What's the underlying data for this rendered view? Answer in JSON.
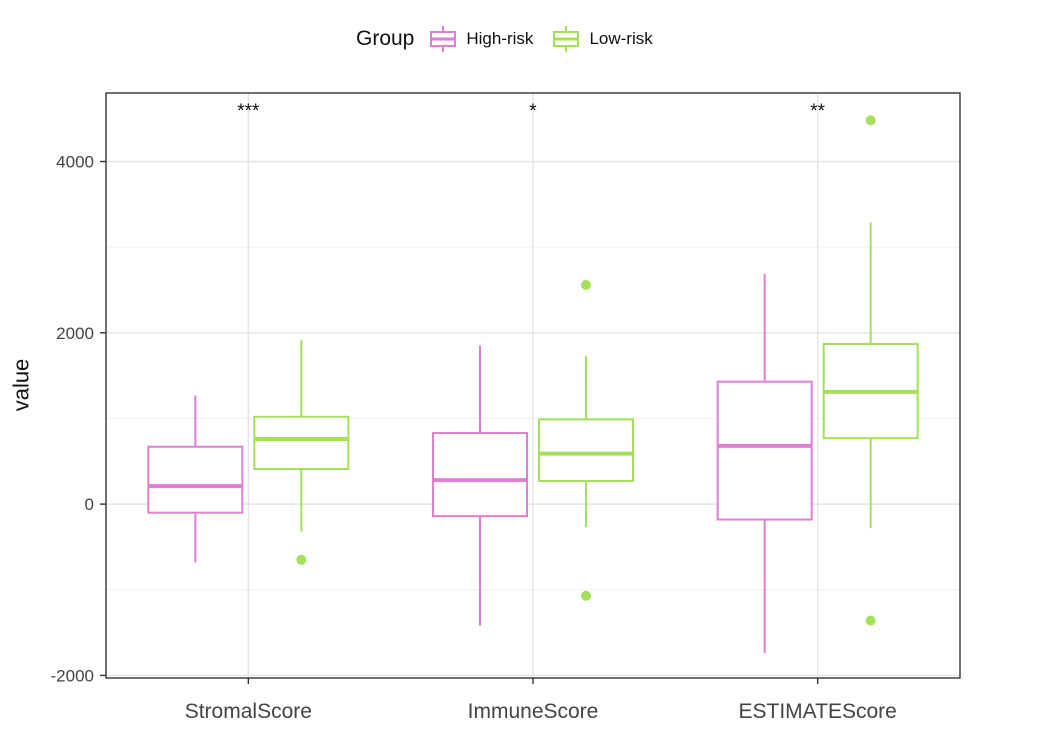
{
  "legend": {
    "title": "Group",
    "items": [
      {
        "label": "High-risk",
        "color": "#e07fd2"
      },
      {
        "label": "Low-risk",
        "color": "#a4e05a"
      }
    ]
  },
  "chart_data": {
    "type": "boxplot",
    "title": "",
    "xlabel": "",
    "ylabel": "value",
    "categories": [
      "StromalScore",
      "ImmuneScore",
      "ESTIMATEScore"
    ],
    "significance": [
      "***",
      "*",
      "**"
    ],
    "ylim": [
      -2030,
      4800
    ],
    "yticks": [
      -2000,
      0,
      2000,
      4000
    ],
    "grid": true,
    "legend_position": "top",
    "series": [
      {
        "name": "High-risk",
        "color": "#e07fd2",
        "boxes": [
          {
            "whisker_low": -680,
            "q1": -100,
            "median": 210,
            "q3": 670,
            "whisker_high": 1270,
            "outliers": []
          },
          {
            "whisker_low": -1420,
            "q1": -140,
            "median": 280,
            "q3": 830,
            "whisker_high": 1850,
            "outliers": []
          },
          {
            "whisker_low": -1740,
            "q1": -180,
            "median": 680,
            "q3": 1430,
            "whisker_high": 2690,
            "outliers": []
          }
        ]
      },
      {
        "name": "Low-risk",
        "color": "#a4e05a",
        "boxes": [
          {
            "whisker_low": -320,
            "q1": 410,
            "median": 760,
            "q3": 1020,
            "whisker_high": 1920,
            "outliers": [
              -650
            ]
          },
          {
            "whisker_low": -270,
            "q1": 270,
            "median": 590,
            "q3": 990,
            "whisker_high": 1730,
            "outliers": [
              2560,
              -1070
            ]
          },
          {
            "whisker_low": -280,
            "q1": 770,
            "median": 1310,
            "q3": 1870,
            "whisker_high": 3290,
            "outliers": [
              4480,
              -1360
            ]
          }
        ]
      }
    ]
  }
}
